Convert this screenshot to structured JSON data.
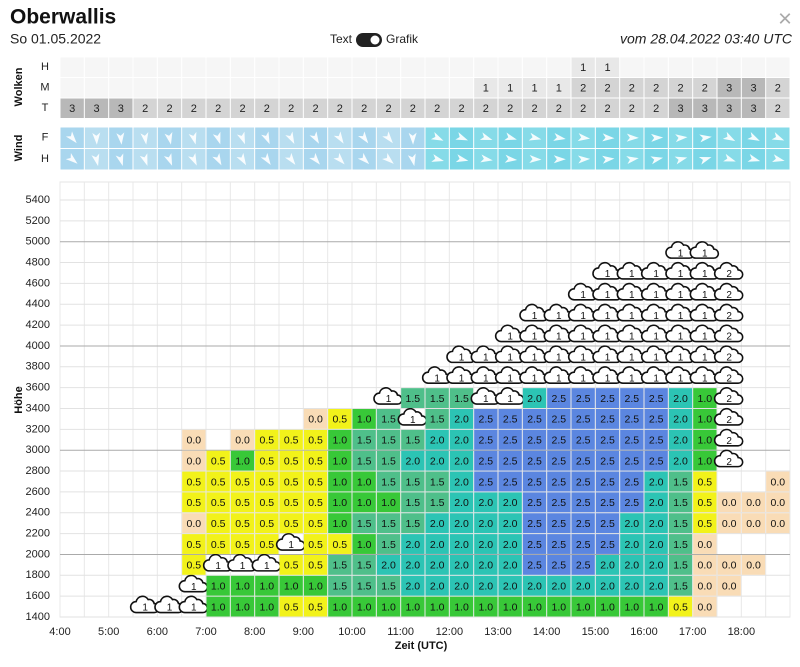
{
  "header": {
    "title": "Oberwallis",
    "date": "So 01.05.2022",
    "toggle_left": "Text",
    "toggle_right": "Grafik",
    "issued": "vom 28.04.2022 03:40 UTC",
    "close": "×"
  },
  "clouds": {
    "label": "Wolken",
    "rows": [
      {
        "name": "H",
        "values": [
          null,
          null,
          null,
          null,
          null,
          null,
          null,
          null,
          null,
          null,
          null,
          null,
          null,
          null,
          null,
          null,
          null,
          null,
          null,
          null,
          null,
          "1",
          "1",
          null,
          null,
          null,
          null,
          null,
          null,
          null
        ]
      },
      {
        "name": "M",
        "values": [
          null,
          null,
          null,
          null,
          null,
          null,
          null,
          null,
          null,
          null,
          null,
          null,
          null,
          null,
          null,
          null,
          null,
          "1",
          "1",
          "1",
          "1",
          "2",
          "2",
          "2",
          "2",
          "2",
          "2",
          "3",
          "3",
          "2"
        ]
      },
      {
        "name": "T",
        "values": [
          "3",
          "3",
          "3",
          "2",
          "2",
          "2",
          "2",
          "2",
          "2",
          "2",
          "2",
          "2",
          "2",
          "2",
          "2",
          "2",
          "2",
          "2",
          "2",
          "2",
          "2",
          "2",
          "2",
          "2",
          "2",
          "3",
          "3",
          "3",
          "3",
          "2"
        ]
      }
    ],
    "shades": {
      "1": "#e8e8e8",
      "2": "#d4d4d4",
      "3": "#b8b8b8"
    }
  },
  "wind": {
    "label": "Wind",
    "rows": [
      {
        "name": "F"
      },
      {
        "name": "H"
      }
    ]
  },
  "grid": {
    "y_label": "Höhe",
    "x_label": "Zeit (UTC)",
    "y_ticks": [
      1400,
      1600,
      1800,
      2000,
      2200,
      2400,
      2600,
      2800,
      3000,
      3200,
      3400,
      3600,
      3800,
      4000,
      4200,
      4400,
      4600,
      4800,
      5000,
      5200,
      5400
    ],
    "x_ticks": [
      "4:00",
      "5:00",
      "6:00",
      "7:00",
      "8:00",
      "9:00",
      "10:00",
      "11:00",
      "12:00",
      "13:00",
      "14:00",
      "15:00",
      "16:00",
      "17:00",
      "18:00"
    ],
    "colors": {
      "0.0": "#f9dcb6",
      "0.5": "#f2f21a",
      "1.0": "#38c838",
      "1.5": "#4fbf8a",
      "2.0": "#2cc4b4",
      "2.5": "#5b86e0"
    },
    "rows": [
      [
        null,
        null,
        null,
        {
          "cloud": "1"
        },
        {
          "cloud": "1"
        },
        {
          "cloud": "1"
        },
        "1.0",
        "1.0",
        "1.0",
        "0.5",
        "0.5",
        "1.0",
        "1.0",
        "1.0",
        "1.0",
        "1.0",
        "1.0",
        "1.0",
        "1.0",
        "1.0",
        "1.0",
        "1.0",
        "1.0",
        "1.0",
        "1.0",
        "0.5",
        "0.0",
        null,
        null,
        null
      ],
      [
        null,
        null,
        null,
        null,
        null,
        {
          "cloud": "1"
        },
        "1.0",
        "1.0",
        "1.0",
        "1.0",
        "1.0",
        "1.5",
        "1.5",
        "1.5",
        "2.0",
        "2.0",
        "2.0",
        "2.0",
        "2.0",
        "2.0",
        "2.0",
        "2.0",
        "2.0",
        "2.0",
        "2.0",
        "1.5",
        "0.0",
        "0.0",
        null,
        null
      ],
      [
        null,
        null,
        null,
        null,
        null,
        "0.5",
        {
          "cloud": "1"
        },
        {
          "cloud": "1"
        },
        {
          "cloud": "1"
        },
        "0.5",
        "0.5",
        "1.5",
        "1.5",
        "2.0",
        "2.0",
        "2.0",
        "2.0",
        "2.0",
        "2.0",
        "2.5",
        "2.5",
        "2.5",
        "2.0",
        "2.0",
        "2.0",
        "1.5",
        "0.0",
        "0.0",
        "0.0",
        null
      ],
      [
        null,
        null,
        null,
        null,
        null,
        "0.5",
        "0.5",
        "0.5",
        "0.5",
        {
          "cloud": "1"
        },
        "0.5",
        "0.5",
        "1.0",
        "1.5",
        "2.0",
        "2.0",
        "2.0",
        "2.0",
        "2.0",
        "2.5",
        "2.5",
        "2.5",
        "2.5",
        "2.0",
        "2.0",
        "1.5",
        "0.0",
        null,
        null,
        null
      ],
      [
        null,
        null,
        null,
        null,
        null,
        "0.0",
        "0.5",
        "0.5",
        "0.5",
        "0.5",
        "0.5",
        "1.0",
        "1.5",
        "1.5",
        "1.5",
        "2.0",
        "2.0",
        "2.0",
        "2.0",
        "2.5",
        "2.5",
        "2.5",
        "2.5",
        "2.0",
        "2.0",
        "1.5",
        "0.5",
        "0.0",
        "0.0",
        "0.0"
      ],
      [
        null,
        null,
        null,
        null,
        null,
        "0.5",
        "0.5",
        "0.5",
        "0.5",
        "0.5",
        "0.5",
        "1.0",
        "1.0",
        "1.0",
        "1.5",
        "1.5",
        "2.0",
        "2.0",
        "2.0",
        "2.5",
        "2.5",
        "2.5",
        "2.5",
        "2.5",
        "2.0",
        "1.5",
        "0.5",
        "0.0",
        "0.0",
        "0.0"
      ],
      [
        null,
        null,
        null,
        null,
        null,
        "0.5",
        "0.5",
        "0.5",
        "0.5",
        "0.5",
        "0.5",
        "1.0",
        "1.0",
        "1.5",
        "1.5",
        "1.5",
        "2.0",
        "2.5",
        "2.5",
        "2.5",
        "2.5",
        "2.5",
        "2.5",
        "2.5",
        "2.0",
        "1.5",
        "0.5",
        null,
        null,
        "0.0"
      ],
      [
        null,
        null,
        null,
        null,
        null,
        "0.0",
        "0.5",
        "1.0",
        "0.5",
        "0.5",
        "0.5",
        "1.0",
        "1.5",
        "1.5",
        "2.0",
        "2.0",
        "2.0",
        "2.5",
        "2.5",
        "2.5",
        "2.5",
        "2.5",
        "2.5",
        "2.5",
        "2.5",
        "2.0",
        "1.0",
        {
          "cloud": "2"
        },
        null,
        null
      ],
      [
        null,
        null,
        null,
        null,
        null,
        "0.0",
        null,
        "0.0",
        "0.5",
        "0.5",
        "0.5",
        "1.0",
        "1.5",
        "1.5",
        "1.5",
        "2.0",
        "2.0",
        "2.5",
        "2.5",
        "2.5",
        "2.5",
        "2.5",
        "2.5",
        "2.5",
        "2.5",
        "2.0",
        "1.0",
        {
          "cloud": "2"
        },
        null,
        null
      ],
      [
        null,
        null,
        null,
        null,
        null,
        null,
        null,
        null,
        null,
        null,
        "0.0",
        "0.5",
        "1.0",
        "1.5",
        {
          "cloud": "1"
        },
        "1.5",
        "2.0",
        "2.5",
        "2.5",
        "2.5",
        "2.5",
        "2.5",
        "2.5",
        "2.5",
        "2.5",
        "2.0",
        "1.0",
        {
          "cloud": "2"
        },
        null,
        null
      ],
      [
        null,
        null,
        null,
        null,
        null,
        null,
        null,
        null,
        null,
        null,
        null,
        null,
        null,
        {
          "cloud": "1"
        },
        "1.5",
        "1.5",
        "1.5",
        {
          "cloud": "1"
        },
        {
          "cloud": "1"
        },
        "2.0",
        "2.5",
        "2.5",
        "2.5",
        "2.5",
        "2.5",
        "2.0",
        "1.0",
        {
          "cloud": "2"
        },
        null,
        null
      ],
      [
        null,
        null,
        null,
        null,
        null,
        null,
        null,
        null,
        null,
        null,
        null,
        null,
        null,
        null,
        null,
        {
          "cloud": "1"
        },
        {
          "cloud": "1"
        },
        {
          "cloud": "1"
        },
        {
          "cloud": "1"
        },
        {
          "cloud": "1"
        },
        {
          "cloud": "1"
        },
        {
          "cloud": "1"
        },
        {
          "cloud": "1"
        },
        {
          "cloud": "1"
        },
        {
          "cloud": "1"
        },
        {
          "cloud": "1"
        },
        {
          "cloud": "1"
        },
        {
          "cloud": "2"
        },
        null,
        null
      ],
      [
        null,
        null,
        null,
        null,
        null,
        null,
        null,
        null,
        null,
        null,
        null,
        null,
        null,
        null,
        null,
        null,
        {
          "cloud": "1"
        },
        {
          "cloud": "1"
        },
        {
          "cloud": "1"
        },
        {
          "cloud": "1"
        },
        {
          "cloud": "1"
        },
        {
          "cloud": "1"
        },
        {
          "cloud": "1"
        },
        {
          "cloud": "1"
        },
        {
          "cloud": "1"
        },
        {
          "cloud": "1"
        },
        {
          "cloud": "1"
        },
        {
          "cloud": "2"
        },
        null,
        null
      ],
      [
        null,
        null,
        null,
        null,
        null,
        null,
        null,
        null,
        null,
        null,
        null,
        null,
        null,
        null,
        null,
        null,
        null,
        null,
        {
          "cloud": "1"
        },
        {
          "cloud": "1"
        },
        {
          "cloud": "1"
        },
        {
          "cloud": "1"
        },
        {
          "cloud": "1"
        },
        {
          "cloud": "1"
        },
        {
          "cloud": "1"
        },
        {
          "cloud": "1"
        },
        {
          "cloud": "1"
        },
        {
          "cloud": "2"
        },
        null,
        null
      ],
      [
        null,
        null,
        null,
        null,
        null,
        null,
        null,
        null,
        null,
        null,
        null,
        null,
        null,
        null,
        null,
        null,
        null,
        null,
        null,
        {
          "cloud": "1"
        },
        {
          "cloud": "1"
        },
        {
          "cloud": "1"
        },
        {
          "cloud": "1"
        },
        {
          "cloud": "1"
        },
        {
          "cloud": "1"
        },
        {
          "cloud": "1"
        },
        {
          "cloud": "1"
        },
        {
          "cloud": "2"
        },
        null,
        null
      ],
      [
        null,
        null,
        null,
        null,
        null,
        null,
        null,
        null,
        null,
        null,
        null,
        null,
        null,
        null,
        null,
        null,
        null,
        null,
        null,
        null,
        null,
        {
          "cloud": "1"
        },
        {
          "cloud": "1"
        },
        {
          "cloud": "1"
        },
        {
          "cloud": "1"
        },
        {
          "cloud": "1"
        },
        {
          "cloud": "1"
        },
        {
          "cloud": "2"
        },
        null,
        null
      ],
      [
        null,
        null,
        null,
        null,
        null,
        null,
        null,
        null,
        null,
        null,
        null,
        null,
        null,
        null,
        null,
        null,
        null,
        null,
        null,
        null,
        null,
        null,
        {
          "cloud": "1"
        },
        {
          "cloud": "1"
        },
        {
          "cloud": "1"
        },
        {
          "cloud": "1"
        },
        {
          "cloud": "1"
        },
        {
          "cloud": "2"
        },
        null,
        null
      ],
      [
        null,
        null,
        null,
        null,
        null,
        null,
        null,
        null,
        null,
        null,
        null,
        null,
        null,
        null,
        null,
        null,
        null,
        null,
        null,
        null,
        null,
        null,
        null,
        null,
        null,
        {
          "cloud": "1"
        },
        {
          "cloud": "1"
        },
        null,
        null,
        null
      ]
    ]
  }
}
